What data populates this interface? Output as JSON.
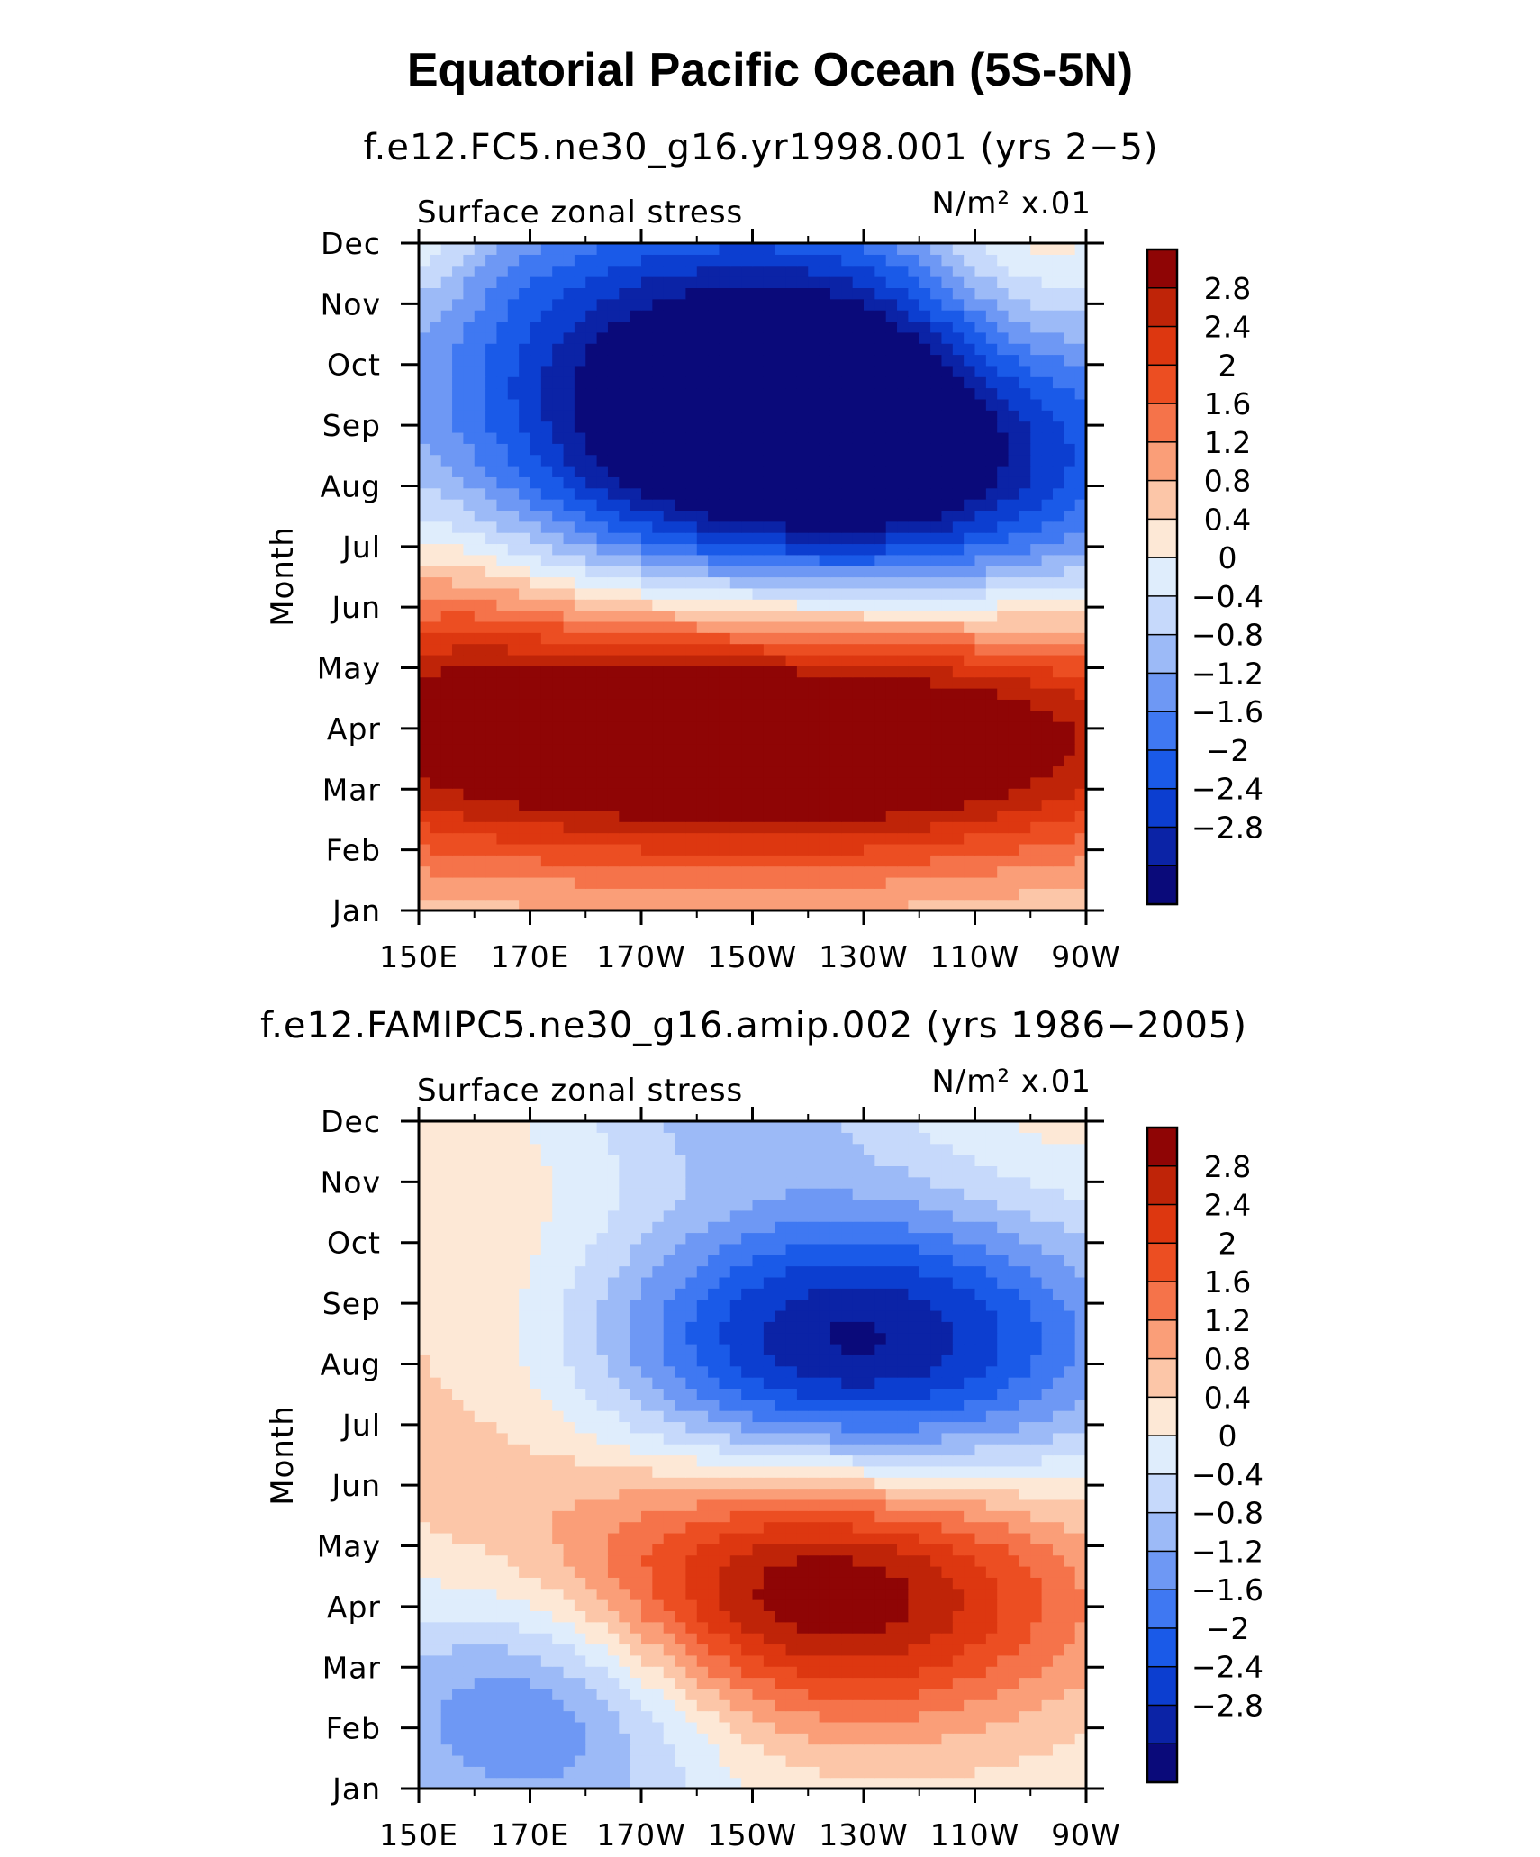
{
  "title": "Equatorial Pacific Ocean (5S-5N)",
  "colors": [
    "#0a0a7a",
    "#0b23a6",
    "#0c3ed0",
    "#1a5ae8",
    "#3f78f2",
    "#6e98f4",
    "#9cbaf7",
    "#c6d9fb",
    "#dfedfc",
    "#fde8d6",
    "#fcc6a8",
    "#fa9e78",
    "#f5734a",
    "#ec4e22",
    "#dd3710",
    "#bf2408",
    "#8f0505"
  ],
  "colorbar_labels": [
    "2.8",
    "2.4",
    "2",
    "1.6",
    "1.2",
    "0.8",
    "0.4",
    "0",
    "−0.4",
    "−0.8",
    "−1.2",
    "−1.6",
    "−2",
    "−2.4",
    "−2.8"
  ],
  "chart_data": [
    {
      "type": "heatmap",
      "subtitle": "f.e12.FC5.ne30_g16.yr1998.001 (yrs 2−5)",
      "variable_label": "Surface zonal stress",
      "units_label": "N/m² x.01",
      "ylabel": "Month",
      "x_ticks": [
        "150E",
        "170E",
        "170W",
        "150W",
        "130W",
        "110W",
        "90W"
      ],
      "y_ticks": [
        "Jan",
        "Feb",
        "Mar",
        "Apr",
        "May",
        "Jun",
        "Jul",
        "Aug",
        "Sep",
        "Oct",
        "Nov",
        "Dec"
      ],
      "blobs": [
        {
          "lon": 197,
          "month": 3.5,
          "slon": 70,
          "smon": 1.7,
          "amp": 3.2
        },
        {
          "lon": 232,
          "month": 3.2,
          "slon": 50,
          "smon": 1.3,
          "amp": 1.3
        },
        {
          "lon": 202,
          "month": 8.4,
          "slon": 38,
          "smon": 1.9,
          "amp": -3.3
        },
        {
          "lon": 244,
          "month": 8.0,
          "slon": 34,
          "smon": 1.8,
          "amp": -2.6
        },
        {
          "lon": 205,
          "month": 11.0,
          "slon": 45,
          "smon": 1.4,
          "amp": -1.3
        },
        {
          "lon": 258,
          "month": 11.3,
          "slon": 14,
          "smon": 2.3,
          "amp": 1.3
        },
        {
          "lon": 157,
          "month": 5.5,
          "slon": 14,
          "smon": 2.4,
          "amp": 0.5
        },
        {
          "lon": 150,
          "month": 11.8,
          "slon": 9,
          "smon": 1.0,
          "amp": 0.8
        }
      ]
    },
    {
      "type": "heatmap",
      "subtitle": "f.e12.FAMIPC5.ne30_g16.amip.002 (yrs 1986−2005)",
      "variable_label": "Surface zonal stress",
      "units_label": "N/m² x.01",
      "ylabel": "Month",
      "x_ticks": [
        "150E",
        "170E",
        "170W",
        "150W",
        "130W",
        "110W",
        "90W"
      ],
      "y_ticks": [
        "Jan",
        "Feb",
        "Mar",
        "Apr",
        "May",
        "Jun",
        "Jul",
        "Aug",
        "Sep",
        "Oct",
        "Nov",
        "Dec"
      ],
      "blobs": [
        {
          "lon": 222,
          "month": 3.8,
          "slon": 34,
          "smon": 1.6,
          "amp": 3.4
        },
        {
          "lon": 228,
          "month": 7.8,
          "slon": 34,
          "smon": 1.7,
          "amp": -3.4
        },
        {
          "lon": 172,
          "month": 2.0,
          "slon": 24,
          "smon": 1.6,
          "amp": -2.0
        },
        {
          "lon": 162,
          "month": 7.6,
          "slon": 26,
          "smon": 3.0,
          "amp": 0.7
        },
        {
          "lon": 205,
          "month": 11.8,
          "slon": 22,
          "smon": 0.9,
          "amp": -0.9
        },
        {
          "lon": 262,
          "month": 11.5,
          "slon": 20,
          "smon": 1.5,
          "amp": 0.3
        }
      ]
    }
  ]
}
